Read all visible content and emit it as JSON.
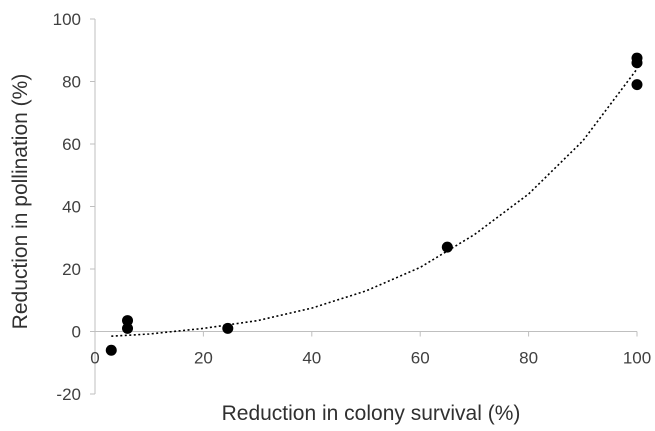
{
  "chart_data": {
    "type": "scatter",
    "title": "",
    "xlabel": "Reduction in colony survival (%)",
    "ylabel": "Reduction in pollination (%)",
    "xlim": [
      0,
      100
    ],
    "ylim": [
      -20,
      100
    ],
    "x_ticks": [
      "0",
      "20",
      "40",
      "60",
      "80",
      "100"
    ],
    "y_ticks": [
      "-20",
      "0",
      "20",
      "40",
      "60",
      "80",
      "100"
    ],
    "grid": false,
    "legend": "none",
    "point_color": "#000000",
    "trendline": {
      "style": "dotted",
      "color": "#000000",
      "points": [
        {
          "x": 3,
          "y": -1.5
        },
        {
          "x": 10,
          "y": -0.8
        },
        {
          "x": 20,
          "y": 1.0
        },
        {
          "x": 30,
          "y": 3.5
        },
        {
          "x": 40,
          "y": 7.5
        },
        {
          "x": 50,
          "y": 13
        },
        {
          "x": 60,
          "y": 20.5
        },
        {
          "x": 70,
          "y": 31
        },
        {
          "x": 80,
          "y": 44
        },
        {
          "x": 90,
          "y": 61
        },
        {
          "x": 100,
          "y": 84
        }
      ]
    },
    "series": [
      {
        "points": [
          {
            "x": 3,
            "y": -6
          },
          {
            "x": 6,
            "y": 3.5
          },
          {
            "x": 6,
            "y": 1
          },
          {
            "x": 24.5,
            "y": 1
          },
          {
            "x": 65,
            "y": 27
          },
          {
            "x": 100,
            "y": 87.5
          },
          {
            "x": 100,
            "y": 86
          },
          {
            "x": 100,
            "y": 79
          }
        ]
      }
    ]
  }
}
